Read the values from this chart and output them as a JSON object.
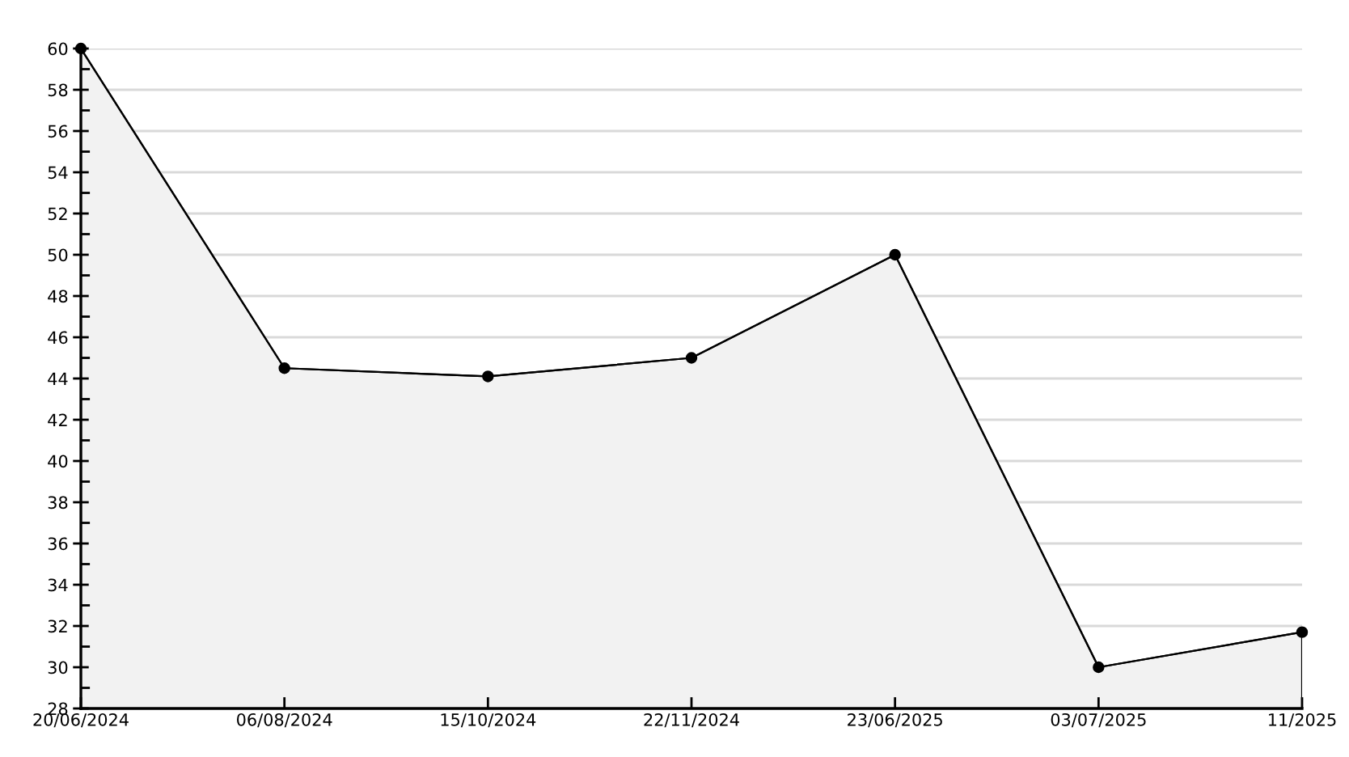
{
  "chart_data": {
    "type": "area",
    "categories": [
      "20/06/2024",
      "06/08/2024",
      "15/10/2024",
      "22/11/2024",
      "23/06/2025",
      "03/07/2025",
      "11/2025"
    ],
    "series": [
      {
        "color": "#f2f2f2",
        "values": [
          60,
          44.5,
          44.1,
          45,
          50,
          30,
          31.7
        ]
      }
    ],
    "ylim": [
      28,
      60
    ],
    "yticks": [
      28,
      {
        "value": 29,
        "label": null
      },
      30,
      {
        "value": 31,
        "label": null
      },
      32,
      {
        "value": 33,
        "label": null
      },
      34,
      {
        "value": 35,
        "label": null
      },
      36,
      {
        "value": 37,
        "label": null
      },
      38,
      {
        "value": 39,
        "label": null
      },
      40,
      {
        "value": 41,
        "label": null
      },
      42,
      {
        "value": 43,
        "label": null
      },
      44,
      {
        "value": 45,
        "label": null
      },
      46,
      {
        "value": 47,
        "label": null
      },
      48,
      {
        "value": 49,
        "label": null
      },
      50,
      {
        "value": 51,
        "label": null
      },
      52,
      {
        "value": 53,
        "label": null
      },
      54,
      {
        "value": 55,
        "label": null
      },
      56,
      {
        "value": 57,
        "label": null
      },
      58,
      {
        "value": 59,
        "label": null
      },
      60
    ],
    "grid": "y",
    "marker": "circle",
    "line_style": "solid"
  }
}
